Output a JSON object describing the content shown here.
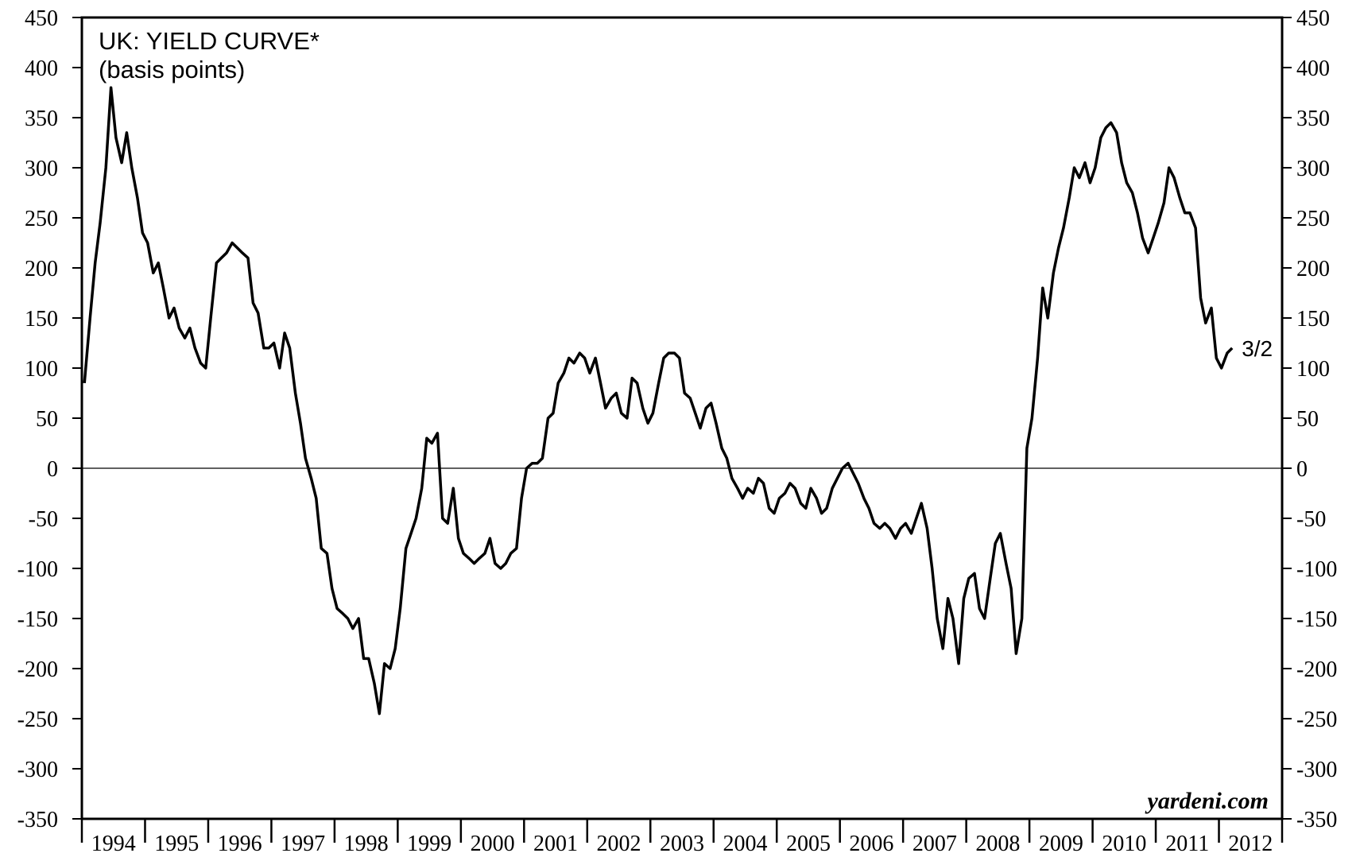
{
  "chart_data": {
    "type": "line",
    "title": "UK: YIELD CURVE*",
    "subtitle": "(basis points)",
    "source": "yardeni.com",
    "annotation": "3/2",
    "color": "#000000",
    "xlim": [
      1994,
      2013
    ],
    "xticks": [
      1994,
      1995,
      1996,
      1997,
      1998,
      1999,
      2000,
      2001,
      2002,
      2003,
      2004,
      2005,
      2006,
      2007,
      2008,
      2009,
      2010,
      2011,
      2012,
      2013
    ],
    "xtick_labels": [
      {
        "value": 1994.5,
        "label": "1994"
      },
      {
        "value": 1995.5,
        "label": "1995"
      },
      {
        "value": 1996.5,
        "label": "1996"
      },
      {
        "value": 1997.5,
        "label": "1997"
      },
      {
        "value": 1998.5,
        "label": "1998"
      },
      {
        "value": 1999.5,
        "label": "1999"
      },
      {
        "value": 2000.5,
        "label": "2000"
      },
      {
        "value": 2001.5,
        "label": "2001"
      },
      {
        "value": 2002.5,
        "label": "2002"
      },
      {
        "value": 2003.5,
        "label": "2003"
      },
      {
        "value": 2004.5,
        "label": "2004"
      },
      {
        "value": 2005.5,
        "label": "2005"
      },
      {
        "value": 2006.5,
        "label": "2006"
      },
      {
        "value": 2007.5,
        "label": "2007"
      },
      {
        "value": 2008.5,
        "label": "2008"
      },
      {
        "value": 2009.5,
        "label": "2009"
      },
      {
        "value": 2010.5,
        "label": "2010"
      },
      {
        "value": 2011.5,
        "label": "2011"
      },
      {
        "value": 2012.5,
        "label": "2012"
      }
    ],
    "ylim": [
      -350,
      450
    ],
    "yticks": [
      -350,
      -300,
      -250,
      -200,
      -150,
      -100,
      -50,
      0,
      50,
      100,
      150,
      200,
      250,
      300,
      350,
      400,
      450
    ],
    "y2lim": [
      -350,
      450
    ],
    "y2ticks": [
      -350,
      -300,
      -250,
      -200,
      -150,
      -100,
      -50,
      0,
      50,
      100,
      150,
      200,
      250,
      300,
      350,
      400,
      450
    ],
    "zero_line": true,
    "x": [
      1994.04,
      1994.13,
      1994.21,
      1994.29,
      1994.38,
      1994.46,
      1994.54,
      1994.63,
      1994.71,
      1994.79,
      1994.88,
      1994.96,
      1995.04,
      1995.13,
      1995.21,
      1995.29,
      1995.38,
      1995.46,
      1995.54,
      1995.63,
      1995.71,
      1995.79,
      1995.88,
      1995.96,
      1996.04,
      1996.13,
      1996.21,
      1996.29,
      1996.38,
      1996.46,
      1996.54,
      1996.63,
      1996.71,
      1996.79,
      1996.88,
      1996.96,
      1997.04,
      1997.13,
      1997.21,
      1997.29,
      1997.38,
      1997.46,
      1997.54,
      1997.63,
      1997.71,
      1997.79,
      1997.88,
      1997.96,
      1998.04,
      1998.13,
      1998.21,
      1998.29,
      1998.38,
      1998.46,
      1998.54,
      1998.63,
      1998.71,
      1998.79,
      1998.88,
      1998.96,
      1999.04,
      1999.13,
      1999.21,
      1999.29,
      1999.38,
      1999.46,
      1999.54,
      1999.63,
      1999.71,
      1999.79,
      1999.88,
      1999.96,
      2000.04,
      2000.13,
      2000.21,
      2000.29,
      2000.38,
      2000.46,
      2000.54,
      2000.63,
      2000.71,
      2000.79,
      2000.88,
      2000.96,
      2001.04,
      2001.13,
      2001.21,
      2001.29,
      2001.38,
      2001.46,
      2001.54,
      2001.63,
      2001.71,
      2001.79,
      2001.88,
      2001.96,
      2002.04,
      2002.13,
      2002.21,
      2002.29,
      2002.38,
      2002.46,
      2002.54,
      2002.63,
      2002.71,
      2002.79,
      2002.88,
      2002.96,
      2003.04,
      2003.13,
      2003.21,
      2003.29,
      2003.38,
      2003.46,
      2003.54,
      2003.63,
      2003.71,
      2003.79,
      2003.88,
      2003.96,
      2004.04,
      2004.13,
      2004.21,
      2004.29,
      2004.38,
      2004.46,
      2004.54,
      2004.63,
      2004.71,
      2004.79,
      2004.88,
      2004.96,
      2005.04,
      2005.13,
      2005.21,
      2005.29,
      2005.38,
      2005.46,
      2005.54,
      2005.63,
      2005.71,
      2005.79,
      2005.88,
      2005.96,
      2006.04,
      2006.13,
      2006.21,
      2006.29,
      2006.38,
      2006.46,
      2006.54,
      2006.63,
      2006.71,
      2006.79,
      2006.88,
      2006.96,
      2007.04,
      2007.13,
      2007.21,
      2007.29,
      2007.38,
      2007.46,
      2007.54,
      2007.63,
      2007.71,
      2007.79,
      2007.88,
      2007.96,
      2008.04,
      2008.13,
      2008.21,
      2008.29,
      2008.38,
      2008.46,
      2008.54,
      2008.63,
      2008.71,
      2008.79,
      2008.88,
      2008.96,
      2009.04,
      2009.13,
      2009.21,
      2009.29,
      2009.38,
      2009.46,
      2009.54,
      2009.63,
      2009.71,
      2009.79,
      2009.88,
      2009.96,
      2010.04,
      2010.13,
      2010.21,
      2010.29,
      2010.38,
      2010.46,
      2010.54,
      2010.63,
      2010.71,
      2010.79,
      2010.88,
      2010.96,
      2011.04,
      2011.13,
      2011.21,
      2011.29,
      2011.38,
      2011.46,
      2011.54,
      2011.63,
      2011.71,
      2011.79,
      2011.88,
      2011.96,
      2012.04,
      2012.13,
      2012.21
    ],
    "values": [
      85,
      150,
      205,
      245,
      300,
      380,
      330,
      305,
      335,
      300,
      270,
      235,
      225,
      195,
      205,
      180,
      150,
      160,
      140,
      130,
      140,
      120,
      105,
      100,
      150,
      205,
      210,
      215,
      225,
      220,
      215,
      210,
      165,
      155,
      120,
      120,
      125,
      100,
      135,
      120,
      75,
      45,
      10,
      -10,
      -30,
      -80,
      -85,
      -120,
      -140,
      -145,
      -150,
      -160,
      -150,
      -190,
      -190,
      -215,
      -245,
      -195,
      -200,
      -180,
      -140,
      -80,
      -65,
      -50,
      -20,
      30,
      25,
      35,
      -50,
      -55,
      -20,
      -70,
      -85,
      -90,
      -95,
      -90,
      -85,
      -70,
      -95,
      -100,
      -95,
      -85,
      -80,
      -30,
      0,
      5,
      5,
      10,
      50,
      55,
      85,
      95,
      110,
      105,
      115,
      110,
      95,
      110,
      85,
      60,
      70,
      75,
      55,
      50,
      90,
      85,
      60,
      45,
      55,
      85,
      110,
      115,
      115,
      110,
      75,
      70,
      55,
      40,
      60,
      65,
      45,
      20,
      10,
      -10,
      -20,
      -30,
      -20,
      -25,
      -10,
      -15,
      -40,
      -45,
      -30,
      -25,
      -15,
      -20,
      -35,
      -40,
      -20,
      -30,
      -45,
      -40,
      -20,
      -10,
      0,
      5,
      -5,
      -15,
      -30,
      -40,
      -55,
      -60,
      -55,
      -60,
      -70,
      -60,
      -55,
      -65,
      -50,
      -35,
      -60,
      -100,
      -150,
      -180,
      -130,
      -150,
      -195,
      -130,
      -110,
      -105,
      -140,
      -150,
      -110,
      -75,
      -65,
      -95,
      -120,
      -185,
      -150,
      20,
      50,
      110,
      180,
      150,
      195,
      220,
      240,
      270,
      300,
      290,
      305,
      285,
      300,
      330,
      340,
      345,
      335,
      305,
      285,
      275,
      255,
      230,
      215,
      230,
      245,
      265,
      300,
      290,
      270,
      255,
      255,
      240,
      170,
      145,
      160,
      110,
      100,
      115,
      120
    ]
  }
}
